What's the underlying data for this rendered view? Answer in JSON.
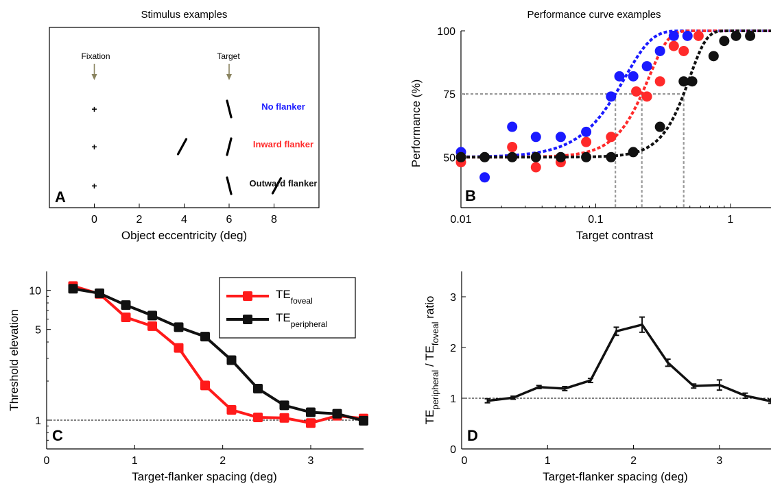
{
  "chart_data": [
    {
      "panel": "A",
      "type": "stimulus-diagram",
      "title": "Stimulus examples",
      "panel_label": "A",
      "xlabel": "Object eccentricity (deg)",
      "xlim": [
        -2,
        10
      ],
      "x_ticks": [
        0,
        2,
        4,
        6,
        8
      ],
      "annotations": {
        "fixation": "Fixation",
        "target": "Target"
      },
      "fixation_x": 0,
      "target_x": 6,
      "fixation_mark": "+",
      "rows": [
        {
          "label": "No flanker",
          "color": "#1a1aff",
          "target_tilt": "left",
          "flanker_x": null,
          "flanker_tilt": null
        },
        {
          "label": "Inward flanker",
          "color": "#ff2a2a",
          "target_tilt": "right",
          "flanker_x": 4,
          "flanker_tilt": "right"
        },
        {
          "label": "Outward flanker",
          "color": "#111111",
          "target_tilt": "left",
          "flanker_x": 8,
          "flanker_tilt": "right"
        }
      ]
    },
    {
      "panel": "B",
      "type": "scatter",
      "title": "Performance curve examples",
      "panel_label": "B",
      "xlabel": "Target contrast",
      "ylabel": "Performance (%)",
      "xscale": "log",
      "xlim": [
        0.01,
        2
      ],
      "ylim": [
        30,
        100
      ],
      "x_ticks": [
        0.01,
        0.1,
        1
      ],
      "x_tick_labels": [
        "0.01",
        "0.1",
        "1"
      ],
      "y_ticks": [
        50,
        75,
        100
      ],
      "y_tick_labels": [
        "50",
        "75",
        "100"
      ],
      "threshold_level": 75,
      "chance_level": 50,
      "series": [
        {
          "color": "#1a1aff",
          "points": [
            [
              0.01,
              52
            ],
            [
              0.015,
              42
            ],
            [
              0.024,
              62
            ],
            [
              0.036,
              58
            ],
            [
              0.055,
              58
            ],
            [
              0.085,
              60
            ],
            [
              0.13,
              74
            ],
            [
              0.15,
              82
            ],
            [
              0.19,
              82
            ],
            [
              0.24,
              86
            ],
            [
              0.3,
              92
            ],
            [
              0.38,
              98
            ],
            [
              0.48,
              98
            ]
          ],
          "threshold": 0.14,
          "slope": 2.2
        },
        {
          "color": "#ff2a2a",
          "points": [
            [
              0.01,
              48
            ],
            [
              0.024,
              54
            ],
            [
              0.036,
              46
            ],
            [
              0.055,
              48
            ],
            [
              0.085,
              56
            ],
            [
              0.13,
              58
            ],
            [
              0.2,
              76
            ],
            [
              0.24,
              74
            ],
            [
              0.3,
              80
            ],
            [
              0.38,
              94
            ],
            [
              0.45,
              92
            ],
            [
              0.58,
              98
            ]
          ],
          "threshold": 0.22,
          "slope": 3.0
        },
        {
          "color": "#111111",
          "points": [
            [
              0.01,
              50
            ],
            [
              0.015,
              50
            ],
            [
              0.024,
              50
            ],
            [
              0.036,
              50
            ],
            [
              0.055,
              50
            ],
            [
              0.085,
              50
            ],
            [
              0.13,
              50
            ],
            [
              0.19,
              52
            ],
            [
              0.3,
              62
            ],
            [
              0.45,
              80
            ],
            [
              0.52,
              80
            ],
            [
              0.75,
              90
            ],
            [
              0.9,
              96
            ],
            [
              1.1,
              98
            ],
            [
              1.4,
              98
            ]
          ],
          "threshold": 0.45,
          "slope": 3.5
        }
      ]
    },
    {
      "panel": "C",
      "type": "line",
      "panel_label": "C",
      "xlabel": "Target-flanker spacing (deg)",
      "ylabel": "Threshold elevation",
      "yscale": "log",
      "xlim": [
        0,
        3.6
      ],
      "ylim": [
        0.6,
        14
      ],
      "x_ticks": [
        0,
        1,
        2,
        3
      ],
      "y_ticks": [
        1,
        5,
        10
      ],
      "reference_line": 1,
      "legend_position": "top-right",
      "x": [
        0.3,
        0.6,
        0.9,
        1.2,
        1.5,
        1.8,
        2.1,
        2.4,
        2.7,
        3.0,
        3.3,
        3.6
      ],
      "series": [
        {
          "name": "TE",
          "name_sub": "foveal",
          "color": "#ff1a1a",
          "values": [
            10.8,
            9.4,
            6.2,
            5.3,
            3.6,
            1.85,
            1.2,
            1.05,
            1.04,
            0.95,
            1.08,
            1.03
          ]
        },
        {
          "name": "TE",
          "name_sub": "peripheral",
          "color": "#111111",
          "values": [
            10.3,
            9.5,
            7.7,
            6.4,
            5.2,
            4.4,
            2.9,
            1.75,
            1.3,
            1.15,
            1.12,
            0.99
          ]
        }
      ]
    },
    {
      "panel": "D",
      "type": "line",
      "panel_label": "D",
      "xlabel": "Target-flanker spacing (deg)",
      "ylabel_parts": [
        "TE",
        "peripheral",
        "/ TE",
        "foveal",
        "ratio"
      ],
      "xlim": [
        0,
        3.6
      ],
      "ylim": [
        0,
        3.5
      ],
      "x_ticks": [
        0,
        1,
        2,
        3
      ],
      "y_ticks": [
        0,
        1,
        2,
        3
      ],
      "reference_line": 1,
      "x": [
        0.3,
        0.6,
        0.9,
        1.2,
        1.5,
        1.8,
        2.1,
        2.4,
        2.7,
        3.0,
        3.3,
        3.6
      ],
      "series": [
        {
          "color": "#111111",
          "values": [
            0.95,
            1.01,
            1.22,
            1.19,
            1.35,
            2.32,
            2.45,
            1.7,
            1.24,
            1.26,
            1.05,
            0.94
          ],
          "errors": [
            0.04,
            0.03,
            0.03,
            0.04,
            0.04,
            0.08,
            0.15,
            0.07,
            0.04,
            0.1,
            0.05,
            0.04
          ]
        }
      ]
    }
  ]
}
